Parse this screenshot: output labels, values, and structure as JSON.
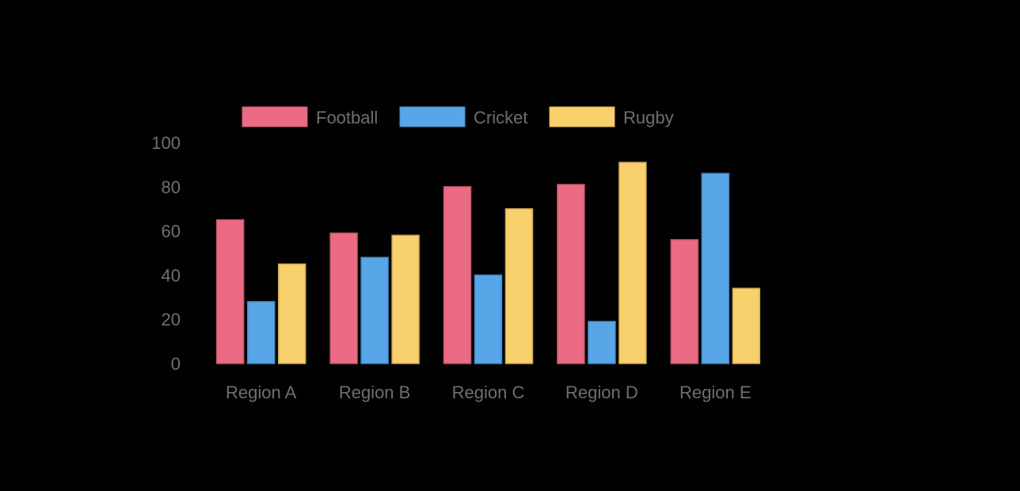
{
  "chart_data": {
    "type": "bar",
    "categories": [
      "Region A",
      "Region B",
      "Region C",
      "Region D",
      "Region E"
    ],
    "series": [
      {
        "name": "Football",
        "values": [
          65,
          59,
          80,
          81,
          56
        ],
        "color": "#ec6b84"
      },
      {
        "name": "Cricket",
        "values": [
          28,
          48,
          40,
          19,
          86
        ],
        "color": "#58a6e8"
      },
      {
        "name": "Rugby",
        "values": [
          45,
          58,
          70,
          91,
          34
        ],
        "color": "#f8d06c"
      }
    ],
    "y_ticks": [
      "0",
      "20",
      "40",
      "60",
      "80",
      "100"
    ],
    "ylim": [
      0,
      100
    ],
    "grid": false,
    "legend_position": "top",
    "background": "#000000",
    "text_color": "#6f6f6f"
  }
}
